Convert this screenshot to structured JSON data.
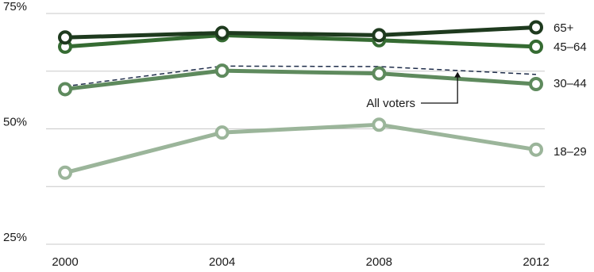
{
  "chart_data": {
    "type": "line",
    "x": [
      2000,
      2004,
      2008,
      2012
    ],
    "xtick_labels": [
      "2000",
      "2004",
      "2008",
      "2012"
    ],
    "ylim": [
      25,
      75
    ],
    "yticks": [
      25,
      50,
      75
    ],
    "ytick_labels": [
      "25%",
      "50%",
      "75%"
    ],
    "grid": "horizontal",
    "series": [
      {
        "name": "65+",
        "values": [
          69.8,
          70.8,
          70.3,
          72.0
        ],
        "color": "#1e3a1e",
        "marker": "circle"
      },
      {
        "name": "45–64",
        "values": [
          67.8,
          70.3,
          69.2,
          67.8
        ],
        "color": "#356b32",
        "marker": "circle"
      },
      {
        "name": "30–44",
        "values": [
          58.6,
          62.6,
          62.0,
          59.7
        ],
        "color": "#5e8a5d",
        "marker": "circle"
      },
      {
        "name": "18–29",
        "values": [
          40.5,
          49.2,
          50.9,
          45.5
        ],
        "color": "#9bb59a",
        "marker": "circle"
      },
      {
        "name": "All voters",
        "values": [
          59.2,
          63.6,
          63.5,
          61.8
        ],
        "color": "#1f2d4a",
        "marker": "none",
        "dash": true
      }
    ],
    "annotation": {
      "text": "All voters",
      "points_to": {
        "x": 2010,
        "y": 62.7
      }
    }
  }
}
